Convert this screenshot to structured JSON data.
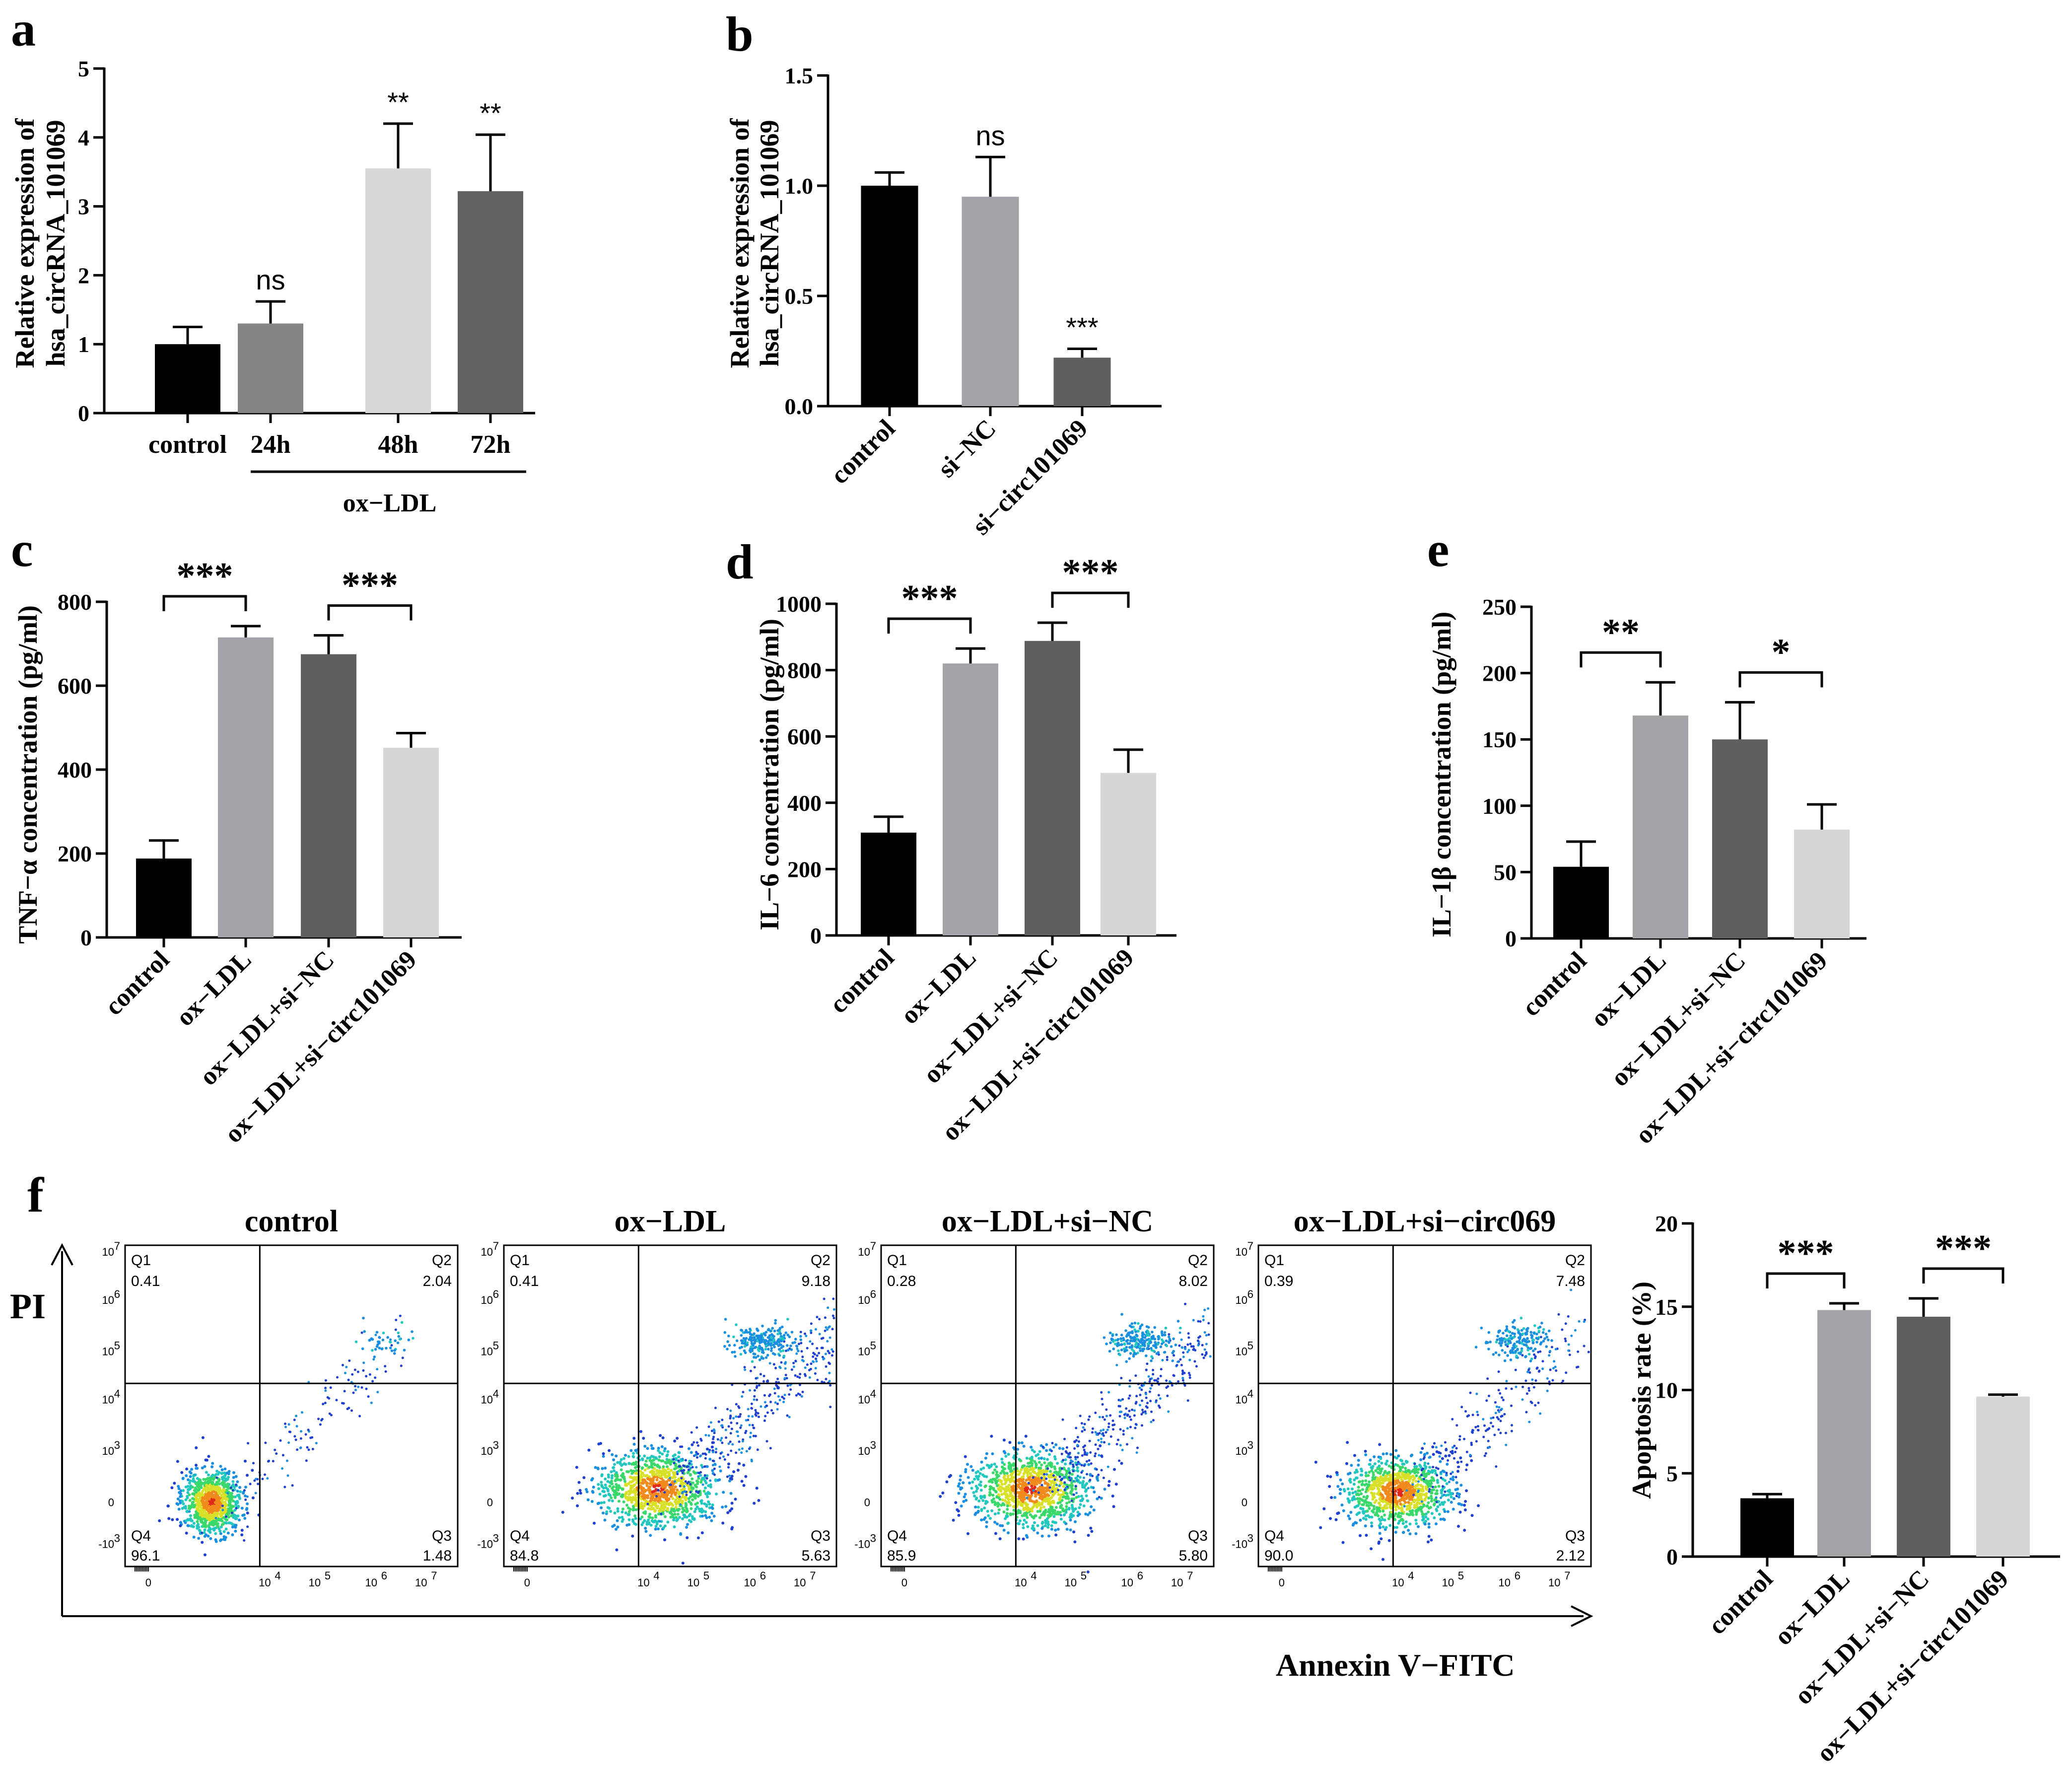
{
  "figure": {
    "panels": [
      {
        "id": "a",
        "letter": "a",
        "ylabel_line1": "Relative expression of",
        "ylabel_line2": "hsa_circRNA_101069",
        "group_label": "ox−LDL"
      },
      {
        "id": "b",
        "letter": "b",
        "ylabel_line1": "Relative expression of",
        "ylabel_line2": "hsa_circRNA_101069"
      },
      {
        "id": "c",
        "letter": "c",
        "ylabel": "TNF−α concentration (pg/ml)"
      },
      {
        "id": "d",
        "letter": "d",
        "ylabel": "IL−6 concentration (pg/ml)"
      },
      {
        "id": "e",
        "letter": "e",
        "ylabel": "IL−1β concentration (pg/ml)"
      },
      {
        "id": "f",
        "letter": "f",
        "ylabel": "Apoptosis rate (%)"
      }
    ],
    "flow": {
      "y_axis_label": "PI",
      "x_axis_label": "Annexin V−FITC",
      "x_ticks": [
        "0",
        "10",
        "10",
        "10",
        "10"
      ],
      "x_tick_exps": [
        "",
        "4",
        "5",
        "6",
        "7"
      ],
      "y_ticks": [
        "10",
        "10",
        "10",
        "10",
        "10",
        "0",
        "-10"
      ],
      "y_tick_exps": [
        "7",
        "6",
        "5",
        "4",
        "3",
        "",
        "3"
      ],
      "plots": [
        {
          "title": "control",
          "q1": "0.41",
          "q2": "2.04",
          "q3": "1.48",
          "q4": "96.1"
        },
        {
          "title": "ox−LDL",
          "q1": "0.41",
          "q2": "9.18",
          "q3": "5.63",
          "q4": "84.8"
        },
        {
          "title": "ox−LDL+si−NC",
          "q1": "0.28",
          "q2": "8.02",
          "q3": "5.80",
          "q4": "85.9"
        },
        {
          "title": "ox−LDL+si−circ069",
          "q1": "0.39",
          "q2": "7.48",
          "q3": "2.12",
          "q4": "90.0"
        }
      ],
      "quadrant_names": [
        "Q1",
        "Q2",
        "Q3",
        "Q4"
      ]
    }
  },
  "chart_data": [
    {
      "id": "a",
      "type": "bar",
      "categories": [
        "control",
        "24h",
        "48h",
        "72h"
      ],
      "values": [
        1.0,
        1.3,
        3.55,
        3.22
      ],
      "errors": [
        0.25,
        0.32,
        0.65,
        0.82
      ],
      "colors": [
        "#000000",
        "#858585",
        "#d8d8d8",
        "#626262"
      ],
      "significance": [
        "",
        "ns",
        "**",
        "**"
      ],
      "ylim": [
        0,
        5
      ],
      "yticks": [
        "0",
        "1",
        "2",
        "3",
        "4",
        "5"
      ]
    },
    {
      "id": "b",
      "type": "bar",
      "categories": [
        "control",
        "si−NC",
        "si−circ101069"
      ],
      "values": [
        1.0,
        0.95,
        0.22
      ],
      "errors": [
        0.06,
        0.18,
        0.04
      ],
      "colors": [
        "#000000",
        "#a3a3a8",
        "#5f5f5f"
      ],
      "significance": [
        "",
        "ns",
        "***"
      ],
      "ylim": [
        0,
        1.5
      ],
      "yticks": [
        "0.0",
        "0.5",
        "1.0",
        "1.5"
      ]
    },
    {
      "id": "c",
      "type": "bar",
      "categories": [
        "control",
        "ox−LDL",
        "ox−LDL+si−NC",
        "ox−LDL+si−circ101069"
      ],
      "values": [
        188,
        715,
        675,
        452
      ],
      "errors": [
        43,
        27,
        45,
        35
      ],
      "colors": [
        "#000000",
        "#a3a3a8",
        "#5f5f5f",
        "#d6d6d6"
      ],
      "brackets": [
        {
          "from": 0,
          "to": 1,
          "label": "***"
        },
        {
          "from": 2,
          "to": 3,
          "label": "***"
        }
      ],
      "ylim": [
        0,
        800
      ],
      "yticks": [
        "0",
        "200",
        "400",
        "600",
        "800"
      ]
    },
    {
      "id": "d",
      "type": "bar",
      "categories": [
        "control",
        "ox−LDL",
        "ox−LDL+si−NC",
        "ox−LDL+si−circ101069"
      ],
      "values": [
        310,
        820,
        888,
        490
      ],
      "errors": [
        48,
        45,
        55,
        70
      ],
      "colors": [
        "#000000",
        "#a3a3a8",
        "#5f5f5f",
        "#d6d6d6"
      ],
      "brackets": [
        {
          "from": 0,
          "to": 1,
          "label": "***"
        },
        {
          "from": 2,
          "to": 3,
          "label": "***"
        }
      ],
      "ylim": [
        0,
        1000
      ],
      "yticks": [
        "0",
        "200",
        "400",
        "600",
        "800",
        "1000"
      ]
    },
    {
      "id": "e",
      "type": "bar",
      "categories": [
        "control",
        "ox−LDL",
        "ox−LDL+si−NC",
        "ox−LDL+si−circ101069"
      ],
      "values": [
        54,
        168,
        150,
        82
      ],
      "errors": [
        19,
        25,
        28,
        19
      ],
      "colors": [
        "#000000",
        "#a3a3a8",
        "#5f5f5f",
        "#d6d6d6"
      ],
      "brackets": [
        {
          "from": 0,
          "to": 1,
          "label": "**"
        },
        {
          "from": 2,
          "to": 3,
          "label": "*"
        }
      ],
      "ylim": [
        0,
        250
      ],
      "yticks": [
        "0",
        "50",
        "100",
        "150",
        "200",
        "250"
      ]
    },
    {
      "id": "f",
      "type": "bar",
      "categories": [
        "control",
        "ox−LDL",
        "ox−LDL+si−NC",
        "ox−LDL+si−circ101069"
      ],
      "values": [
        3.5,
        14.8,
        14.4,
        9.6
      ],
      "errors": [
        0.25,
        0.4,
        1.1,
        0.12
      ],
      "colors": [
        "#000000",
        "#a3a3a8",
        "#5f5f5f",
        "#d6d6d6"
      ],
      "brackets": [
        {
          "from": 0,
          "to": 1,
          "label": "***"
        },
        {
          "from": 2,
          "to": 3,
          "label": "***"
        }
      ],
      "ylim": [
        0,
        20
      ],
      "yticks": [
        "0",
        "5",
        "10",
        "15",
        "20"
      ]
    }
  ]
}
